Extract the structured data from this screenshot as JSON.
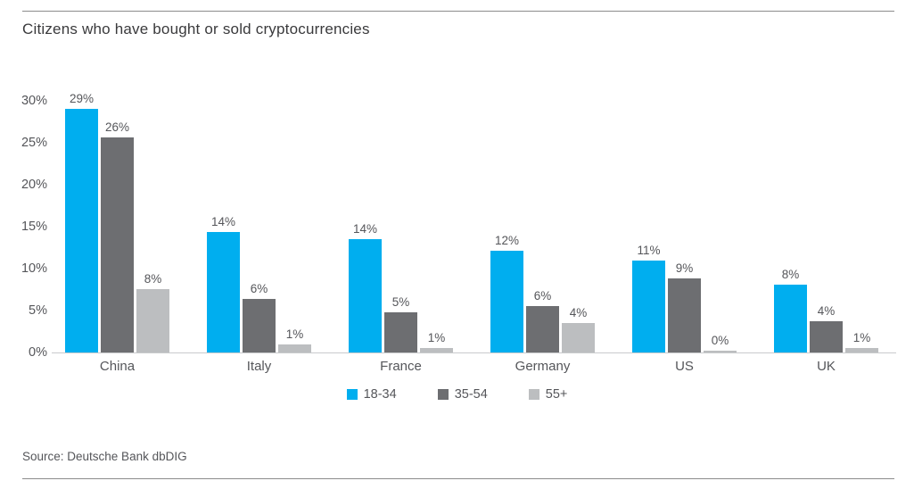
{
  "page": {
    "title": "Citizens who have bought or sold cryptocurrencies",
    "source": "Source: Deutsche Bank dbDIG"
  },
  "colors": {
    "series_18_34": "#00AEEF",
    "series_35_54": "#6D6E71",
    "series_55_plus": "#BCBEC0",
    "axis_line": "#C9CACC",
    "rule_line": "#8C8C8C",
    "title_text": "#3A3A3C",
    "secondary_text": "#55565A",
    "background": "#FFFFFF"
  },
  "chart_data": {
    "type": "bar",
    "title": "Citizens who have bought or sold cryptocurrencies",
    "categories": [
      "China",
      "Italy",
      "France",
      "Germany",
      "US",
      "UK"
    ],
    "series": [
      {
        "name": "18-34",
        "color": "#00AEEF",
        "values": [
          29,
          14,
          14,
          12,
          11,
          8
        ],
        "labels": [
          "29%",
          "14%",
          "14%",
          "12%",
          "11%",
          "8%"
        ],
        "display_heights": [
          29.0,
          14.4,
          13.5,
          12.1,
          11.0,
          8.1
        ]
      },
      {
        "name": "35-54",
        "color": "#6D6E71",
        "values": [
          26,
          6,
          5,
          6,
          9,
          4
        ],
        "labels": [
          "26%",
          "6%",
          "5%",
          "6%",
          "9%",
          "4%"
        ],
        "display_heights": [
          25.6,
          6.4,
          4.8,
          5.5,
          8.8,
          3.7
        ]
      },
      {
        "name": "55+",
        "color": "#BCBEC0",
        "values": [
          8,
          1,
          1,
          4,
          0,
          1
        ],
        "labels": [
          "8%",
          "1%",
          "1%",
          "4%",
          "0%",
          "1%"
        ],
        "display_heights": [
          7.6,
          1.0,
          0.5,
          3.5,
          0.2,
          0.5
        ]
      }
    ],
    "xlabel": "",
    "ylabel": "",
    "ylim": [
      0,
      30
    ],
    "ytick_step": 5,
    "yticks": [
      "0%",
      "5%",
      "10%",
      "15%",
      "20%",
      "25%",
      "30%"
    ],
    "grid": false,
    "legend_position": "bottom"
  }
}
